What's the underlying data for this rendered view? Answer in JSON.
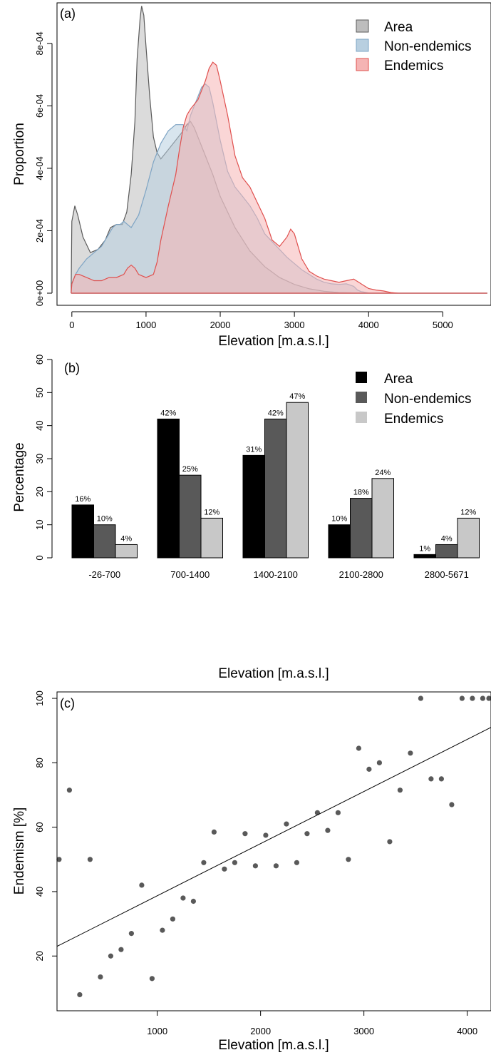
{
  "chart_data": [
    {
      "type": "area",
      "panel_label": "(a)",
      "xlabel": "Elevation [m.a.s.l.]",
      "ylabel": "Proportion",
      "xlim": [
        -200,
        5650
      ],
      "ylim": [
        0,
        0.00093
      ],
      "x_ticks": [
        0,
        1000,
        2000,
        3000,
        4000,
        5000
      ],
      "y_ticks": [
        {
          "value": 0,
          "label": "0e+00"
        },
        {
          "value": 0.0002,
          "label": "2e-04"
        },
        {
          "value": 0.0004,
          "label": "4e-04"
        },
        {
          "value": 0.0006,
          "label": "6e-04"
        },
        {
          "value": 0.0008,
          "label": "8e-04"
        }
      ],
      "legend_position": "top-right",
      "series": [
        {
          "name": "Area",
          "fill": "#bdbdbd",
          "stroke": "#5a5a5a",
          "x": [
            -10,
            0,
            40,
            80,
            150,
            250,
            350,
            450,
            520,
            600,
            680,
            740,
            800,
            850,
            880,
            920,
            940,
            970,
            1000,
            1050,
            1100,
            1150,
            1200,
            1300,
            1400,
            1500,
            1550,
            1600,
            1650,
            1700,
            1800,
            1900,
            2000,
            2200,
            2400,
            2600,
            2800,
            3000,
            3200,
            3400,
            3600,
            3800,
            4000,
            4200,
            4500,
            5000,
            5600
          ],
          "y": [
            0,
            0.00023,
            0.00028,
            0.00025,
            0.00018,
            0.00013,
            0.00014,
            0.00017,
            0.00021,
            0.00022,
            0.00022,
            0.00026,
            0.00038,
            0.00055,
            0.00075,
            0.00088,
            0.00092,
            0.00089,
            0.00079,
            0.00063,
            0.0005,
            0.00045,
            0.00043,
            0.00046,
            0.00049,
            0.00052,
            0.00054,
            0.00055,
            0.00053,
            0.0005,
            0.00044,
            0.00038,
            0.00031,
            0.00021,
            0.000135,
            8.5e-05,
            5e-05,
            2.8e-05,
            1.4e-05,
            6e-06,
            2e-06,
            1e-06,
            5e-07,
            0,
            0,
            0,
            0
          ]
        },
        {
          "name": "Non-endemics",
          "fill": "#b8cfe0",
          "stroke": "#7ea4c4",
          "x": [
            -10,
            0,
            50,
            100,
            200,
            300,
            400,
            500,
            550,
            600,
            650,
            700,
            750,
            800,
            900,
            1000,
            1100,
            1200,
            1300,
            1400,
            1500,
            1550,
            1600,
            1700,
            1750,
            1800,
            1850,
            1900,
            2000,
            2100,
            2200,
            2300,
            2400,
            2500,
            2600,
            2700,
            2800,
            2900,
            3000,
            3100,
            3200,
            3300,
            3400,
            3500,
            3600,
            3700,
            3800,
            3850,
            3900,
            4000,
            4200,
            4500,
            5000,
            5600
          ],
          "y": [
            0,
            3e-05,
            6e-05,
            8e-05,
            0.00011,
            0.00013,
            0.00015,
            0.00019,
            0.00021,
            0.00022,
            0.00022,
            0.00023,
            0.00022,
            0.00021,
            0.00025,
            0.00033,
            0.00042,
            0.00048,
            0.00052,
            0.00054,
            0.00054,
            0.00052,
            0.00057,
            0.00063,
            0.00066,
            0.00067,
            0.00066,
            0.00061,
            0.00049,
            0.00039,
            0.00034,
            0.00031,
            0.00028,
            0.00024,
            0.00019,
            0.000165,
            0.00014,
            0.000115,
            9.5e-05,
            7.5e-05,
            6e-05,
            4.5e-05,
            3.5e-05,
            3e-05,
            2.8e-05,
            3e-05,
            2.2e-05,
            1e-05,
            5e-06,
            1e-06,
            0,
            0,
            0,
            0
          ]
        },
        {
          "name": "Endemics",
          "fill": "#f5b4b4",
          "stroke": "#e0504e",
          "x": [
            -10,
            0,
            50,
            100,
            200,
            300,
            400,
            500,
            600,
            700,
            750,
            800,
            850,
            900,
            1000,
            1100,
            1150,
            1200,
            1300,
            1400,
            1450,
            1500,
            1550,
            1600,
            1700,
            1800,
            1850,
            1900,
            1950,
            2000,
            2100,
            2200,
            2300,
            2400,
            2500,
            2600,
            2700,
            2800,
            2900,
            2950,
            3000,
            3050,
            3100,
            3200,
            3300,
            3400,
            3500,
            3600,
            3700,
            3800,
            3900,
            4000,
            4100,
            4200,
            4300,
            4350,
            4400,
            5000,
            5600
          ],
          "y": [
            0,
            3e-05,
            6e-05,
            6e-05,
            5e-05,
            4e-05,
            4e-05,
            5e-05,
            5e-05,
            6e-05,
            8e-05,
            9e-05,
            8e-05,
            6e-05,
            5e-05,
            6e-05,
            0.0001,
            0.00017,
            0.00028,
            0.00038,
            0.00046,
            0.00053,
            0.00057,
            0.00059,
            0.00062,
            0.00068,
            0.00072,
            0.00074,
            0.00073,
            0.00068,
            0.00057,
            0.00044,
            0.00037,
            0.00034,
            0.00029,
            0.00024,
            0.00017,
            0.00015,
            0.00018,
            0.000205,
            0.00019,
            0.00015,
            0.00011,
            7e-05,
            5.5e-05,
            4.5e-05,
            4e-05,
            3.5e-05,
            4e-05,
            4.5e-05,
            3e-05,
            1.5e-05,
            1e-05,
            7e-06,
            2e-06,
            1e-06,
            0,
            0,
            0
          ]
        }
      ]
    },
    {
      "type": "bar",
      "panel_label": "(b)",
      "xlabel": "Elevation [m.a.s.l.]",
      "ylabel": "Percentage",
      "ylim": [
        0,
        60
      ],
      "y_ticks": [
        0,
        10,
        20,
        30,
        40,
        50,
        60
      ],
      "legend_position": "top-right",
      "categories": [
        "-26-700",
        "700-1400",
        "1400-2100",
        "2100-2800",
        "2800-5671"
      ],
      "series": [
        {
          "name": "Area",
          "color": "#000000",
          "values": [
            16,
            42,
            31,
            10,
            1
          ],
          "labels": [
            "16%",
            "42%",
            "31%",
            "10%",
            "1%"
          ]
        },
        {
          "name": "Non-endemics",
          "color": "#595959",
          "values": [
            10,
            25,
            42,
            18,
            4
          ],
          "labels": [
            "10%",
            "25%",
            "42%",
            "18%",
            "4%"
          ]
        },
        {
          "name": "Endemics",
          "color": "#c8c8c8",
          "values": [
            4,
            12,
            47,
            24,
            12
          ],
          "labels": [
            "4%",
            "12%",
            "47%",
            "24%",
            "12%"
          ]
        }
      ]
    },
    {
      "type": "scatter",
      "panel_label": "(c)",
      "xlabel": "Elevation [m.a.s.l.]",
      "ylabel": "Endemism [%]",
      "xlim": [
        30,
        4230
      ],
      "ylim": [
        3,
        102
      ],
      "x_ticks": [
        1000,
        2000,
        3000,
        4000
      ],
      "y_ticks": [
        20,
        40,
        60,
        80,
        100
      ],
      "point_color": "#595959",
      "line_color": "#000000",
      "fit_line": {
        "x": [
          30,
          4230
        ],
        "y": [
          23,
          91
        ]
      },
      "points": {
        "x": [
          50,
          150,
          250,
          350,
          450,
          550,
          650,
          750,
          850,
          950,
          1050,
          1150,
          1250,
          1350,
          1450,
          1550,
          1650,
          1750,
          1850,
          1950,
          2050,
          2150,
          2250,
          2350,
          2450,
          2550,
          2650,
          2750,
          2850,
          2950,
          3050,
          3150,
          3250,
          3350,
          3450,
          3550,
          3650,
          3750,
          3850,
          3950,
          4050,
          4150,
          4250
        ],
        "y": [
          50,
          71.5,
          8,
          50,
          13.5,
          20,
          22,
          27,
          42,
          13,
          28,
          31.5,
          38,
          37,
          49,
          58.5,
          47,
          49,
          58,
          48,
          57.5,
          48,
          61,
          49,
          58,
          64.5,
          59,
          64.5,
          50,
          84.5,
          78,
          80,
          55.5,
          71.5,
          83,
          100,
          75,
          75,
          67,
          100,
          100,
          100,
          100
        ]
      }
    }
  ]
}
